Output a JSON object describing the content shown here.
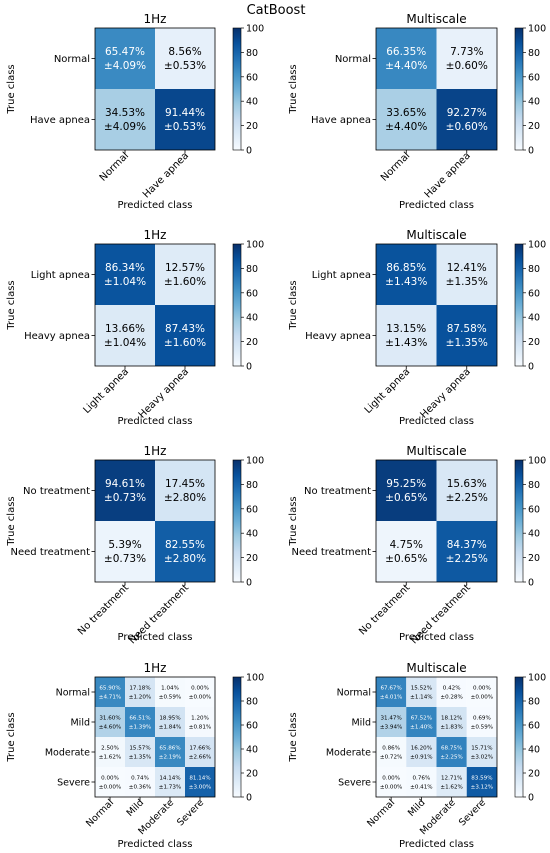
{
  "figure": {
    "suptitle": "CatBoost"
  },
  "colorbar": {
    "ticks": [
      0,
      20,
      40,
      60,
      80,
      100
    ],
    "colormap": "Blues",
    "range": [
      0,
      100
    ]
  },
  "chart_data": [
    {
      "type": "heatmap",
      "title": "1Hz",
      "xlabel": "Predicted class",
      "ylabel": "True class",
      "categories": [
        "Normal",
        "Have apnea"
      ],
      "values": [
        [
          65.47,
          8.56
        ],
        [
          34.53,
          91.44
        ]
      ],
      "labels": [
        [
          "65.47%",
          "8.56%"
        ],
        [
          "34.53%",
          "91.44%"
        ]
      ],
      "errors": [
        [
          "±4.09%",
          "±0.53%"
        ],
        [
          "±4.09%",
          "±0.53%"
        ]
      ]
    },
    {
      "type": "heatmap",
      "title": "Multiscale",
      "xlabel": "Predicted class",
      "ylabel": "True class",
      "categories": [
        "Normal",
        "Have apnea"
      ],
      "values": [
        [
          66.35,
          7.73
        ],
        [
          33.65,
          92.27
        ]
      ],
      "labels": [
        [
          "66.35%",
          "7.73%"
        ],
        [
          "33.65%",
          "92.27%"
        ]
      ],
      "errors": [
        [
          "±4.40%",
          "±0.60%"
        ],
        [
          "±4.40%",
          "±0.60%"
        ]
      ]
    },
    {
      "type": "heatmap",
      "title": "1Hz",
      "xlabel": "Predicted class",
      "ylabel": "True class",
      "categories": [
        "Light apnea",
        "Heavy apnea"
      ],
      "values": [
        [
          86.34,
          12.57
        ],
        [
          13.66,
          87.43
        ]
      ],
      "labels": [
        [
          "86.34%",
          "12.57%"
        ],
        [
          "13.66%",
          "87.43%"
        ]
      ],
      "errors": [
        [
          "±1.04%",
          "±1.60%"
        ],
        [
          "±1.04%",
          "±1.60%"
        ]
      ]
    },
    {
      "type": "heatmap",
      "title": "Multiscale",
      "xlabel": "Predicted class",
      "ylabel": "True class",
      "categories": [
        "Light apnea",
        "Heavy apnea"
      ],
      "values": [
        [
          86.85,
          12.41
        ],
        [
          13.15,
          87.58
        ]
      ],
      "labels": [
        [
          "86.85%",
          "12.41%"
        ],
        [
          "13.15%",
          "87.58%"
        ]
      ],
      "errors": [
        [
          "±1.43%",
          "±1.35%"
        ],
        [
          "±1.43%",
          "±1.35%"
        ]
      ]
    },
    {
      "type": "heatmap",
      "title": "1Hz",
      "xlabel": "Predicted class",
      "ylabel": "True class",
      "categories": [
        "No treatment",
        "Need treatment"
      ],
      "values": [
        [
          94.61,
          17.45
        ],
        [
          5.39,
          82.55
        ]
      ],
      "labels": [
        [
          "94.61%",
          "17.45%"
        ],
        [
          "5.39%",
          "82.55%"
        ]
      ],
      "errors": [
        [
          "±0.73%",
          "±2.80%"
        ],
        [
          "±0.73%",
          "±2.80%"
        ]
      ]
    },
    {
      "type": "heatmap",
      "title": "Multiscale",
      "xlabel": "Predicted class",
      "ylabel": "True class",
      "categories": [
        "No treatment",
        "Need treatment"
      ],
      "values": [
        [
          95.25,
          15.63
        ],
        [
          4.75,
          84.37
        ]
      ],
      "labels": [
        [
          "95.25%",
          "15.63%"
        ],
        [
          "4.75%",
          "84.37%"
        ]
      ],
      "errors": [
        [
          "±0.65%",
          "±2.25%"
        ],
        [
          "±0.65%",
          "±2.25%"
        ]
      ]
    },
    {
      "type": "heatmap",
      "title": "1Hz",
      "xlabel": "Predicted class",
      "ylabel": "True class",
      "categories": [
        "Normal",
        "Mild",
        "Moderate",
        "Severe"
      ],
      "values": [
        [
          65.9,
          17.18,
          1.04,
          0.0
        ],
        [
          31.6,
          66.51,
          18.95,
          1.2
        ],
        [
          2.5,
          15.57,
          65.86,
          17.66
        ],
        [
          0.0,
          0.74,
          14.14,
          81.14
        ]
      ],
      "labels": [
        [
          "65.90%",
          "17.18%",
          "1.04%",
          "0.00%"
        ],
        [
          "31.60%",
          "66.51%",
          "18.95%",
          "1.20%"
        ],
        [
          "2.50%",
          "15.57%",
          "65.86%",
          "17.66%"
        ],
        [
          "0.00%",
          "0.74%",
          "14.14%",
          "81.14%"
        ]
      ],
      "errors": [
        [
          "±4.71%",
          "±1.20%",
          "±0.59%",
          "±0.00%"
        ],
        [
          "±4.60%",
          "±1.39%",
          "±1.84%",
          "±0.81%"
        ],
        [
          "±1.62%",
          "±1.35%",
          "±2.19%",
          "±2.66%"
        ],
        [
          "±0.00%",
          "±0.36%",
          "±1.73%",
          "±3.00%"
        ]
      ]
    },
    {
      "type": "heatmap",
      "title": "Multiscale",
      "xlabel": "Predicted class",
      "ylabel": "True class",
      "categories": [
        "Normal",
        "Mild",
        "Moderate",
        "Severe"
      ],
      "values": [
        [
          67.67,
          15.52,
          0.42,
          0.0
        ],
        [
          31.47,
          67.52,
          18.12,
          0.69
        ],
        [
          0.86,
          16.2,
          68.75,
          15.71
        ],
        [
          0.0,
          0.76,
          12.71,
          83.59
        ]
      ],
      "labels": [
        [
          "67.67%",
          "15.52%",
          "0.42%",
          "0.00%"
        ],
        [
          "31.47%",
          "67.52%",
          "18.12%",
          "0.69%"
        ],
        [
          "0.86%",
          "16.20%",
          "68.75%",
          "15.71%"
        ],
        [
          "0.00%",
          "0.76%",
          "12.71%",
          "83.59%"
        ]
      ],
      "errors": [
        [
          "±4.01%",
          "±1.14%",
          "±0.28%",
          "±0.00%"
        ],
        [
          "±3.94%",
          "±1.40%",
          "±1.83%",
          "±0.59%"
        ],
        [
          "±0.72%",
          "±0.91%",
          "±2.25%",
          "±3.02%"
        ],
        [
          "±0.00%",
          "±0.41%",
          "±1.62%",
          "±3.12%"
        ]
      ]
    }
  ]
}
